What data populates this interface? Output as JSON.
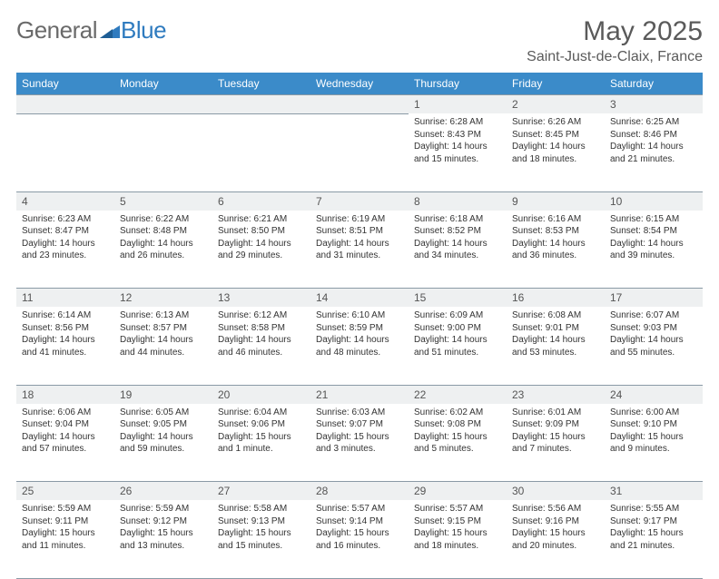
{
  "logo": {
    "part1": "General",
    "part2": "Blue"
  },
  "title": "May 2025",
  "location": "Saint-Just-de-Claix, France",
  "theme": {
    "header_bg": "#3b8bc9",
    "header_fg": "#ffffff",
    "daynum_bg": "#eef0f1",
    "rule_color": "#8a9aa6",
    "text_color": "#333333",
    "title_color": "#5a5a5a",
    "logo_gray": "#6a6a6a",
    "logo_blue": "#2f7bbf"
  },
  "weekdays": [
    "Sunday",
    "Monday",
    "Tuesday",
    "Wednesday",
    "Thursday",
    "Friday",
    "Saturday"
  ],
  "weeks": [
    [
      null,
      null,
      null,
      null,
      {
        "n": "1",
        "sr": "Sunrise: 6:28 AM",
        "ss": "Sunset: 8:43 PM",
        "dl": "Daylight: 14 hours and 15 minutes."
      },
      {
        "n": "2",
        "sr": "Sunrise: 6:26 AM",
        "ss": "Sunset: 8:45 PM",
        "dl": "Daylight: 14 hours and 18 minutes."
      },
      {
        "n": "3",
        "sr": "Sunrise: 6:25 AM",
        "ss": "Sunset: 8:46 PM",
        "dl": "Daylight: 14 hours and 21 minutes."
      }
    ],
    [
      {
        "n": "4",
        "sr": "Sunrise: 6:23 AM",
        "ss": "Sunset: 8:47 PM",
        "dl": "Daylight: 14 hours and 23 minutes."
      },
      {
        "n": "5",
        "sr": "Sunrise: 6:22 AM",
        "ss": "Sunset: 8:48 PM",
        "dl": "Daylight: 14 hours and 26 minutes."
      },
      {
        "n": "6",
        "sr": "Sunrise: 6:21 AM",
        "ss": "Sunset: 8:50 PM",
        "dl": "Daylight: 14 hours and 29 minutes."
      },
      {
        "n": "7",
        "sr": "Sunrise: 6:19 AM",
        "ss": "Sunset: 8:51 PM",
        "dl": "Daylight: 14 hours and 31 minutes."
      },
      {
        "n": "8",
        "sr": "Sunrise: 6:18 AM",
        "ss": "Sunset: 8:52 PM",
        "dl": "Daylight: 14 hours and 34 minutes."
      },
      {
        "n": "9",
        "sr": "Sunrise: 6:16 AM",
        "ss": "Sunset: 8:53 PM",
        "dl": "Daylight: 14 hours and 36 minutes."
      },
      {
        "n": "10",
        "sr": "Sunrise: 6:15 AM",
        "ss": "Sunset: 8:54 PM",
        "dl": "Daylight: 14 hours and 39 minutes."
      }
    ],
    [
      {
        "n": "11",
        "sr": "Sunrise: 6:14 AM",
        "ss": "Sunset: 8:56 PM",
        "dl": "Daylight: 14 hours and 41 minutes."
      },
      {
        "n": "12",
        "sr": "Sunrise: 6:13 AM",
        "ss": "Sunset: 8:57 PM",
        "dl": "Daylight: 14 hours and 44 minutes."
      },
      {
        "n": "13",
        "sr": "Sunrise: 6:12 AM",
        "ss": "Sunset: 8:58 PM",
        "dl": "Daylight: 14 hours and 46 minutes."
      },
      {
        "n": "14",
        "sr": "Sunrise: 6:10 AM",
        "ss": "Sunset: 8:59 PM",
        "dl": "Daylight: 14 hours and 48 minutes."
      },
      {
        "n": "15",
        "sr": "Sunrise: 6:09 AM",
        "ss": "Sunset: 9:00 PM",
        "dl": "Daylight: 14 hours and 51 minutes."
      },
      {
        "n": "16",
        "sr": "Sunrise: 6:08 AM",
        "ss": "Sunset: 9:01 PM",
        "dl": "Daylight: 14 hours and 53 minutes."
      },
      {
        "n": "17",
        "sr": "Sunrise: 6:07 AM",
        "ss": "Sunset: 9:03 PM",
        "dl": "Daylight: 14 hours and 55 minutes."
      }
    ],
    [
      {
        "n": "18",
        "sr": "Sunrise: 6:06 AM",
        "ss": "Sunset: 9:04 PM",
        "dl": "Daylight: 14 hours and 57 minutes."
      },
      {
        "n": "19",
        "sr": "Sunrise: 6:05 AM",
        "ss": "Sunset: 9:05 PM",
        "dl": "Daylight: 14 hours and 59 minutes."
      },
      {
        "n": "20",
        "sr": "Sunrise: 6:04 AM",
        "ss": "Sunset: 9:06 PM",
        "dl": "Daylight: 15 hours and 1 minute."
      },
      {
        "n": "21",
        "sr": "Sunrise: 6:03 AM",
        "ss": "Sunset: 9:07 PM",
        "dl": "Daylight: 15 hours and 3 minutes."
      },
      {
        "n": "22",
        "sr": "Sunrise: 6:02 AM",
        "ss": "Sunset: 9:08 PM",
        "dl": "Daylight: 15 hours and 5 minutes."
      },
      {
        "n": "23",
        "sr": "Sunrise: 6:01 AM",
        "ss": "Sunset: 9:09 PM",
        "dl": "Daylight: 15 hours and 7 minutes."
      },
      {
        "n": "24",
        "sr": "Sunrise: 6:00 AM",
        "ss": "Sunset: 9:10 PM",
        "dl": "Daylight: 15 hours and 9 minutes."
      }
    ],
    [
      {
        "n": "25",
        "sr": "Sunrise: 5:59 AM",
        "ss": "Sunset: 9:11 PM",
        "dl": "Daylight: 15 hours and 11 minutes."
      },
      {
        "n": "26",
        "sr": "Sunrise: 5:59 AM",
        "ss": "Sunset: 9:12 PM",
        "dl": "Daylight: 15 hours and 13 minutes."
      },
      {
        "n": "27",
        "sr": "Sunrise: 5:58 AM",
        "ss": "Sunset: 9:13 PM",
        "dl": "Daylight: 15 hours and 15 minutes."
      },
      {
        "n": "28",
        "sr": "Sunrise: 5:57 AM",
        "ss": "Sunset: 9:14 PM",
        "dl": "Daylight: 15 hours and 16 minutes."
      },
      {
        "n": "29",
        "sr": "Sunrise: 5:57 AM",
        "ss": "Sunset: 9:15 PM",
        "dl": "Daylight: 15 hours and 18 minutes."
      },
      {
        "n": "30",
        "sr": "Sunrise: 5:56 AM",
        "ss": "Sunset: 9:16 PM",
        "dl": "Daylight: 15 hours and 20 minutes."
      },
      {
        "n": "31",
        "sr": "Sunrise: 5:55 AM",
        "ss": "Sunset: 9:17 PM",
        "dl": "Daylight: 15 hours and 21 minutes."
      }
    ]
  ]
}
